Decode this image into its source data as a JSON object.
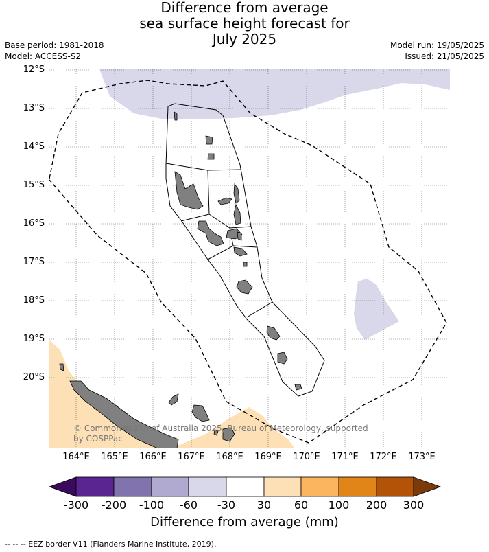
{
  "title_lines": [
    "Difference from average",
    "sea surface height forecast for",
    "July 2025"
  ],
  "meta_left": [
    "Base period: 1981-2018",
    "Model: ACCESS-S2"
  ],
  "meta_right": [
    "Model run: 19/05/2025",
    "Issued: 21/05/2025"
  ],
  "lat_labels": [
    "12°S",
    "13°S",
    "14°S",
    "15°S",
    "16°S",
    "17°S",
    "18°S",
    "19°S",
    "20°S"
  ],
  "lon_labels": [
    "164°E",
    "165°E",
    "166°E",
    "167°E",
    "168°E",
    "169°E",
    "170°E",
    "171°E",
    "172°E",
    "173°E"
  ],
  "copyright": [
    "© Commonwealth of Australia 2025, Bureau of Meteorology, supported",
    "by COSPPac"
  ],
  "colorbar": {
    "title": "Difference from average (mm)",
    "labels": [
      "-300",
      "-200",
      "-100",
      "-60",
      "-30",
      "30",
      "60",
      "100",
      "200",
      "300"
    ],
    "colors": [
      "#3a0a5e",
      "#5a2590",
      "#8073ae",
      "#b0a9d0",
      "#d8d8ea",
      "#ffffff",
      "#fde0b6",
      "#fbb55e",
      "#e28519",
      "#b25307",
      "#7b3a0a"
    ]
  },
  "footer": "--  --  -- EEZ border V11 (Flanders Marine Institute, 2019)."
}
